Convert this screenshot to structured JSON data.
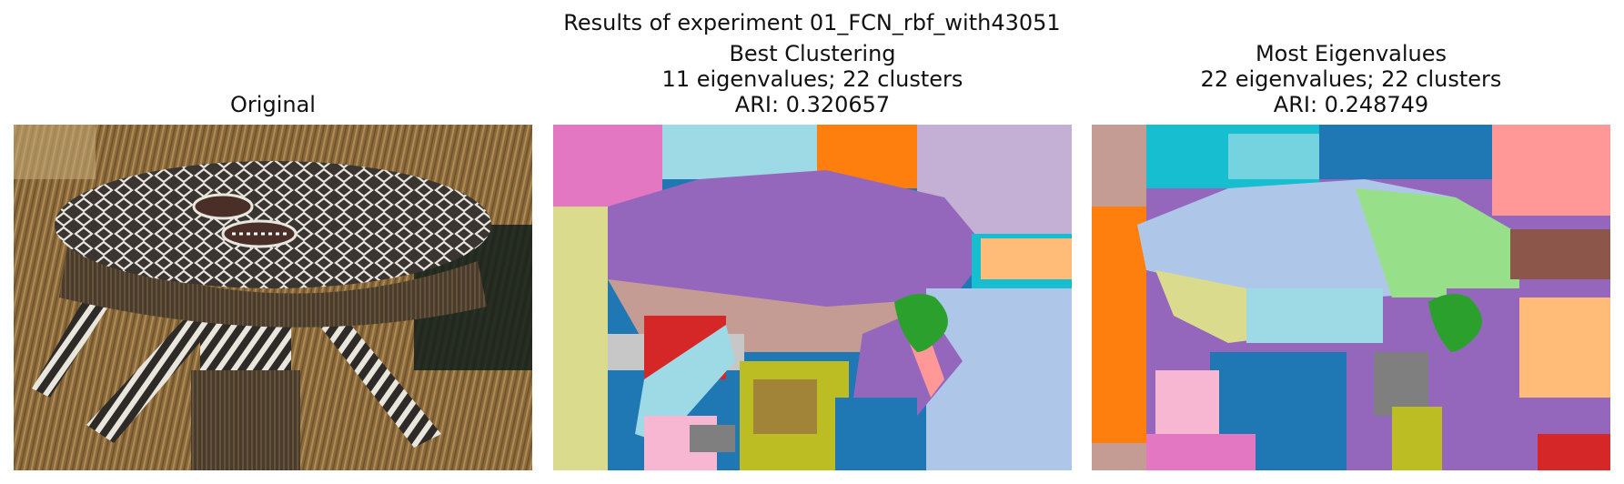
{
  "figure": {
    "suptitle": "Results of experiment 01_FCN_rbf_with43051"
  },
  "panels": [
    {
      "id": "original",
      "title_lines": [
        "Original"
      ],
      "image": "photograph of striped mask figure in thatched hut"
    },
    {
      "id": "best",
      "title_lines": [
        "Best Clustering",
        "11 eigenvalues; 22 clusters",
        "ARI: 0.320657"
      ],
      "image": "segmentation map"
    },
    {
      "id": "most",
      "title_lines": [
        "Most Eigenvalues",
        "22 eigenvalues; 22 clusters",
        "ARI: 0.248749"
      ],
      "image": "segmentation map"
    }
  ],
  "palette": {
    "blue": "#1f77b4",
    "lightblue": "#aec7e8",
    "orange": "#ff7f0e",
    "peach": "#ffbb78",
    "green": "#2ca02c",
    "lightgreen": "#98df8a",
    "red": "#d62728",
    "pink": "#ff9896",
    "purple": "#9467bd",
    "lavender": "#c5b0d5",
    "brown": "#8c564b",
    "tan": "#c49c94",
    "magenta": "#e377c2",
    "lightpink": "#f7b6d2",
    "gray": "#7f7f7f",
    "lightgray": "#c7c7c7",
    "olive": "#bcbd22",
    "khaki": "#dbdb8d",
    "cyan": "#17becf",
    "lightcyan": "#9edae5"
  }
}
